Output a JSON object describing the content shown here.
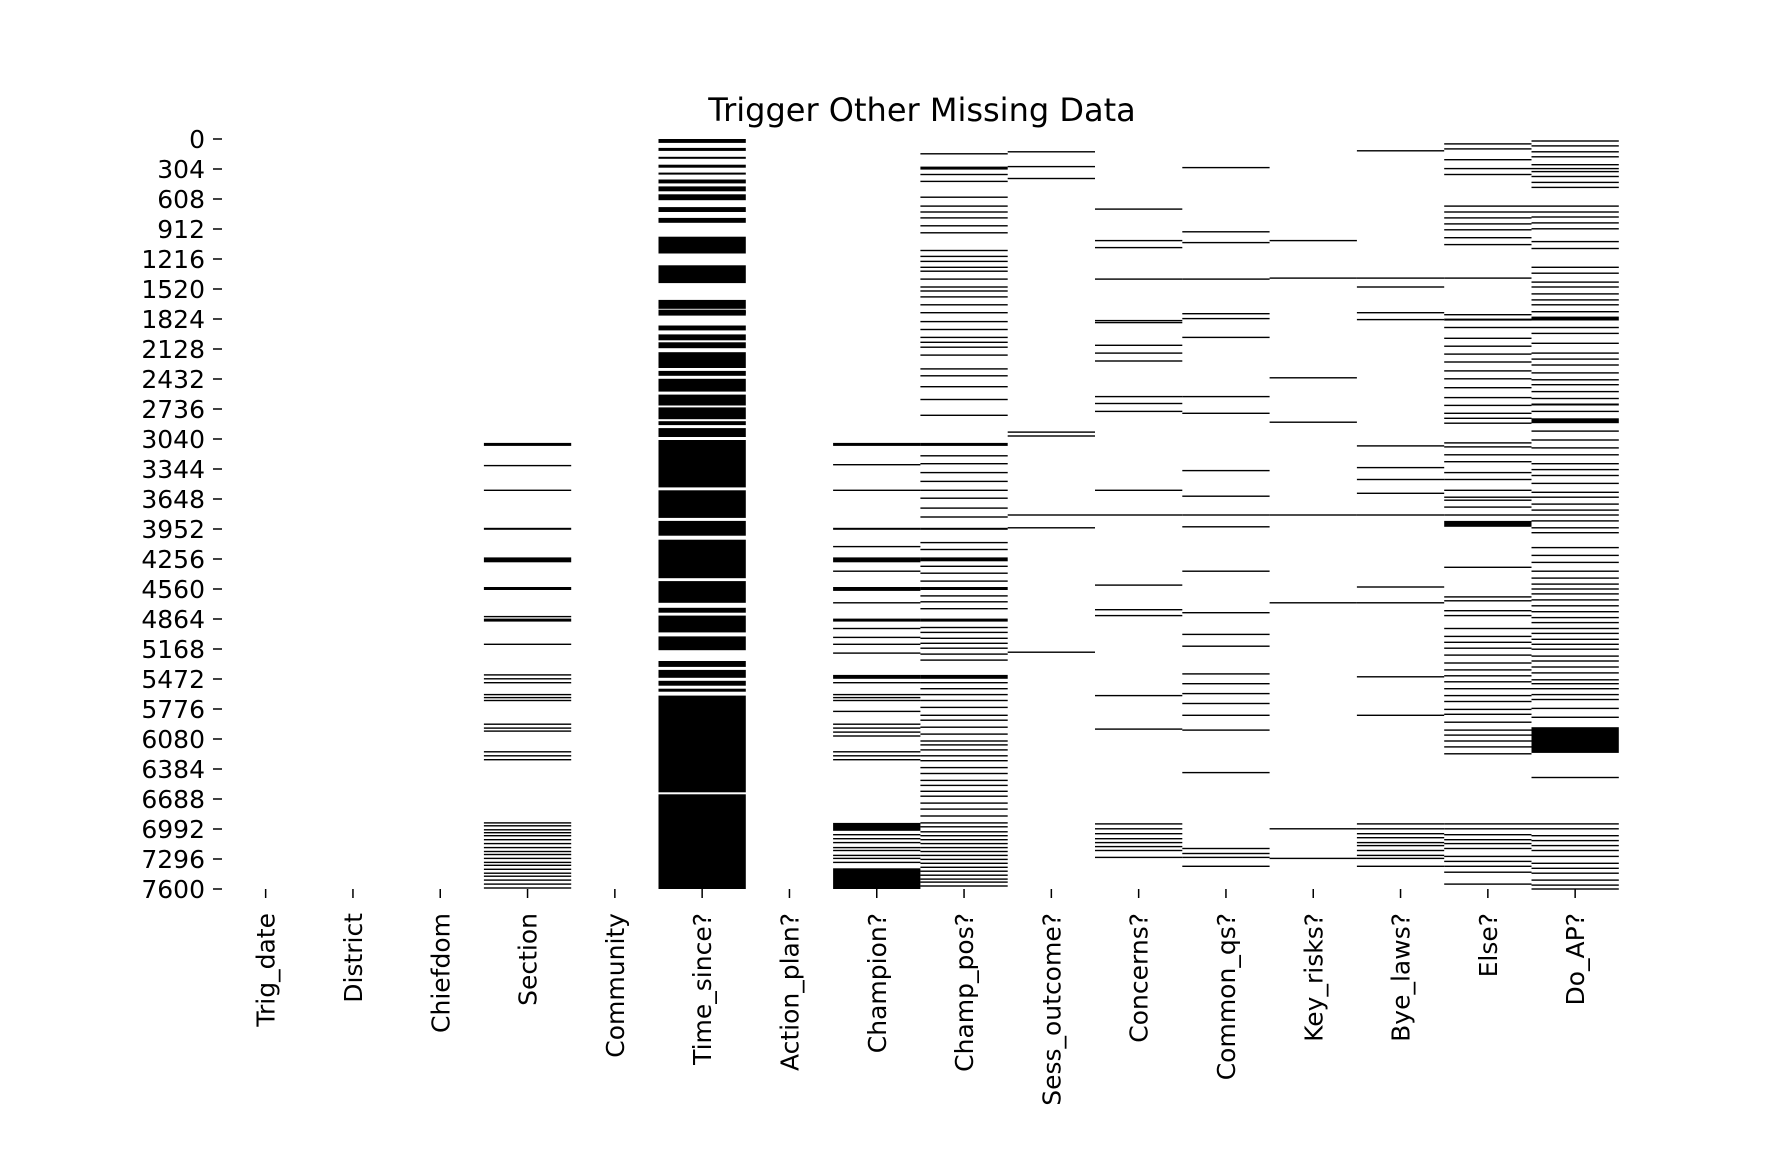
{
  "chart_data": {
    "type": "heatmap",
    "title": "Trigger Other Missing Data",
    "xlabel": "",
    "ylabel": "",
    "colors": {
      "missing": "#000000",
      "present": "#ffffff"
    },
    "y_ticks": [
      0,
      304,
      608,
      912,
      1216,
      1520,
      1824,
      2128,
      2432,
      2736,
      3040,
      3344,
      3648,
      3952,
      4256,
      4560,
      4864,
      5168,
      5472,
      5776,
      6080,
      6384,
      6688,
      6992,
      7296,
      7600
    ],
    "ylim": [
      0,
      7600
    ],
    "categories": [
      "Trig_date",
      "District",
      "Chiefdom",
      "Section",
      "Community",
      "Time_since?",
      "Action_plan?",
      "Champion?",
      "Champ_pos?",
      "Sess_outcome?",
      "Concerns?",
      "Common_qs?",
      "Key_risks?",
      "Bye_laws?",
      "Else?",
      "Do_AP?"
    ],
    "missing_rows": [
      [],
      [],
      [],
      [
        [
          3080,
          3110
        ],
        3310,
        3560,
        [
          3940,
          3960
        ],
        [
          4240,
          4290
        ],
        [
          4540,
          4570
        ],
        [
          4860,
          4890
        ],
        4840,
        5120,
        5430,
        5470,
        5510,
        5630,
        5660,
        5690,
        5930,
        5970,
        6000,
        6210,
        6250,
        6290,
        6930,
        6960,
        7000,
        7030,
        7060,
        7100,
        7140,
        7180,
        7220,
        7250,
        7290,
        7330,
        7360,
        7400,
        7440,
        7470,
        7510,
        7550,
        7590
      ],
      [],
      [
        [
          0,
          40
        ],
        [
          90,
          120
        ],
        [
          180,
          200
        ],
        [
          260,
          290
        ],
        [
          340,
          360
        ],
        [
          410,
          450
        ],
        [
          480,
          530
        ],
        [
          560,
          620
        ],
        [
          690,
          740
        ],
        [
          800,
          850
        ],
        [
          990,
          1160
        ],
        [
          1280,
          1460
        ],
        [
          1630,
          1720
        ],
        [
          1730,
          1770
        ],
        [
          1740,
          1790
        ],
        [
          1890,
          1940
        ],
        [
          1980,
          2040
        ],
        [
          2060,
          2120
        ],
        [
          2160,
          2320
        ],
        [
          2350,
          2400
        ],
        [
          2430,
          2560
        ],
        [
          2590,
          2700
        ],
        [
          2720,
          2840
        ],
        [
          2860,
          2900
        ],
        [
          2930,
          3020
        ],
        [
          3050,
          3530
        ],
        [
          3560,
          3840
        ],
        [
          3870,
          4020
        ],
        [
          4060,
          4450
        ],
        [
          4480,
          4700
        ],
        [
          4750,
          4800
        ],
        [
          4830,
          5000
        ],
        [
          5040,
          5180
        ],
        [
          5290,
          5350
        ],
        [
          5380,
          5460
        ],
        [
          5490,
          5540
        ],
        [
          5570,
          5600
        ],
        [
          5640,
          6620
        ],
        [
          6640,
          7600
        ]
      ],
      [],
      [
        [
          3080,
          3110
        ],
        3300,
        3560,
        [
          3940,
          3960
        ],
        4130,
        [
          4240,
          4290
        ],
        4380,
        [
          4540,
          4580
        ],
        4700,
        [
          4860,
          4890
        ],
        4960,
        5050,
        5120,
        5210,
        [
          5430,
          5470
        ],
        5510,
        5630,
        5660,
        5690,
        5800,
        5930,
        5970,
        6010,
        6050,
        6210,
        6250,
        6290,
        [
          6930,
          7010
        ],
        7050,
        7090,
        7130,
        7180,
        7210,
        7260,
        7290,
        7330,
        [
          7390,
          7600
        ]
      ],
      [
        150,
        [
          280,
          310
        ],
        360,
        430,
        590,
        680,
        740,
        800,
        880,
        950,
        1130,
        1190,
        1240,
        1300,
        1340,
        1420,
        1500,
        1540,
        1600,
        1680,
        1760,
        1850,
        1930,
        2010,
        2060,
        2110,
        2190,
        2330,
        2400,
        2510,
        2640,
        2800,
        [
          3080,
          3110
        ],
        3210,
        3290,
        3380,
        3470,
        3560,
        3640,
        3740,
        3830,
        [
          3940,
          3960
        ],
        4090,
        4160,
        [
          4240,
          4280
        ],
        4330,
        4400,
        4480,
        [
          4540,
          4570
        ],
        4630,
        4690,
        4760,
        [
          4860,
          4890
        ],
        4950,
        5000,
        5060,
        5110,
        5160,
        5220,
        5280,
        [
          5430,
          5470
        ],
        5510,
        5570,
        5630,
        5690,
        5760,
        5840,
        5890,
        5960,
        6030,
        6100,
        6140,
        6190,
        6250,
        6300,
        6370,
        6430,
        6500,
        6550,
        6610,
        6660,
        6730,
        6790,
        6860,
        6930,
        6970,
        7020,
        7060,
        7100,
        7140,
        7180,
        7220,
        7260,
        7300,
        7340,
        7380,
        7420,
        7460,
        7500,
        7530,
        7570
      ],
      [
        130,
        280,
        400,
        2970,
        3010,
        3810,
        3940,
        5200
      ],
      [
        710,
        1030,
        1100,
        1420,
        1840,
        1860,
        2090,
        2170,
        2250,
        2610,
        2680,
        2760,
        3560,
        3810,
        4520,
        4770,
        4830,
        5640,
        5980,
        6940,
        6990,
        7040,
        7090,
        7130,
        7170,
        7210,
        7280
      ],
      [
        290,
        940,
        1050,
        1420,
        1770,
        1820,
        2010,
        2610,
        2780,
        3360,
        3620,
        3810,
        3930,
        4380,
        4800,
        5020,
        5140,
        5420,
        5520,
        5620,
        5720,
        5840,
        5990,
        6420,
        7190,
        7240,
        7280,
        7370
      ],
      [
        1030,
        1410,
        2420,
        2870,
        3810,
        4700,
        6990,
        7290
      ],
      [
        120,
        1410,
        1500,
        1760,
        1830,
        3110,
        3330,
        3450,
        3590,
        3810,
        4540,
        4700,
        5450,
        5840,
        6940,
        6990,
        7040,
        7080,
        7130,
        7160,
        7210,
        7260,
        7290,
        7370
      ],
      [
        50,
        100,
        210,
        300,
        360,
        680,
        740,
        800,
        860,
        920,
        1000,
        1070,
        1410,
        1780,
        [
          1820,
          1840
        ],
        1910,
        2020,
        2100,
        2180,
        2260,
        2350,
        2430,
        2520,
        2620,
        2700,
        2780,
        2830,
        2880,
        3080,
        3120,
        3200,
        3270,
        3380,
        3450,
        3560,
        3630,
        3660,
        3730,
        3810,
        [
          3870,
          3930
        ],
        4340,
        4640,
        4680,
        4780,
        4830,
        4960,
        5040,
        5100,
        5160,
        5230,
        5310,
        5380,
        5440,
        5500,
        5570,
        5640,
        5700,
        5780,
        5830,
        5910,
        5990,
        6040,
        6100,
        6160,
        6230,
        6940,
        6990,
        7050,
        7100,
        7140,
        7190,
        7270,
        7320,
        7370,
        7430,
        7550
      ],
      [
        20,
        70,
        130,
        180,
        260,
        300,
        330,
        380,
        440,
        490,
        680,
        740,
        790,
        850,
        910,
        1040,
        1110,
        1300,
        1360,
        1450,
        1500,
        1570,
        1630,
        1680,
        1750,
        [
          1800,
          1840
        ],
        1910,
        1970,
        2070,
        2170,
        2230,
        2290,
        2370,
        2440,
        2490,
        2560,
        2630,
        [
          2680,
          2700
        ],
        2760,
        [
          2830,
          2880
        ],
        2960,
        3050,
        3130,
        3200,
        3290,
        3350,
        3410,
        3490,
        3580,
        3630,
        3700,
        3760,
        3810,
        3870,
        3940,
        3990,
        4140,
        4220,
        4290,
        4380,
        4450,
        4510,
        4560,
        4610,
        4670,
        4730,
        4790,
        4850,
        4900,
        4960,
        5010,
        5070,
        5120,
        5170,
        5240,
        5290,
        5350,
        5410,
        5480,
        5520,
        5570,
        5630,
        5680,
        5770,
        5860,
        [
          5960,
          6220
        ],
        6470,
        6940,
        6990,
        7060,
        7110,
        7160,
        7210,
        7270,
        7340,
        7390,
        7440,
        7510,
        7560,
        7600
      ]
    ]
  }
}
